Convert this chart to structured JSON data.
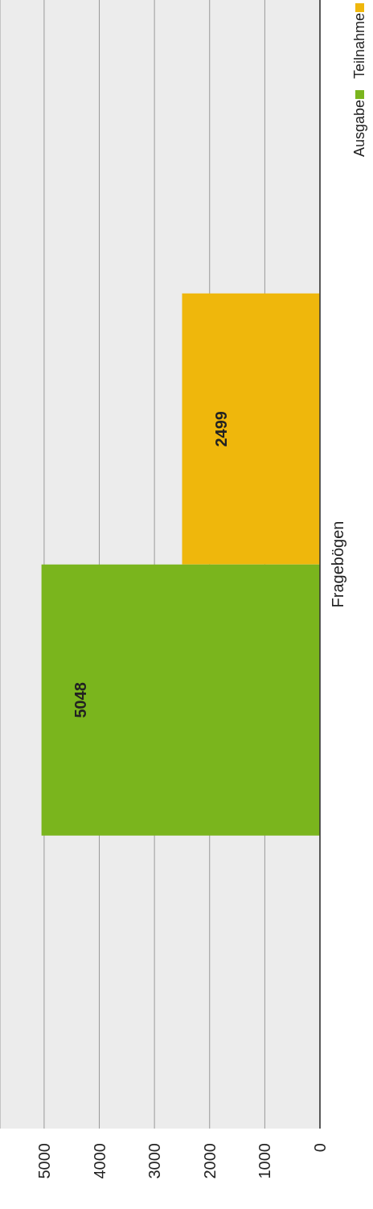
{
  "chart_data": {
    "type": "bar",
    "orientation": "horizontal",
    "categories": [
      "Fragebögen"
    ],
    "series": [
      {
        "name": "Ausgabe",
        "color": "#7ab51d",
        "values": [
          5048
        ]
      },
      {
        "name": "Teilnahme",
        "color": "#efb70c",
        "values": [
          2499
        ]
      }
    ],
    "xlim": [
      5800,
      0
    ],
    "xticks": [
      5000,
      4000,
      3000,
      2000,
      1000,
      0
    ],
    "grid": "x",
    "legend": "top right",
    "data_labels": true
  }
}
